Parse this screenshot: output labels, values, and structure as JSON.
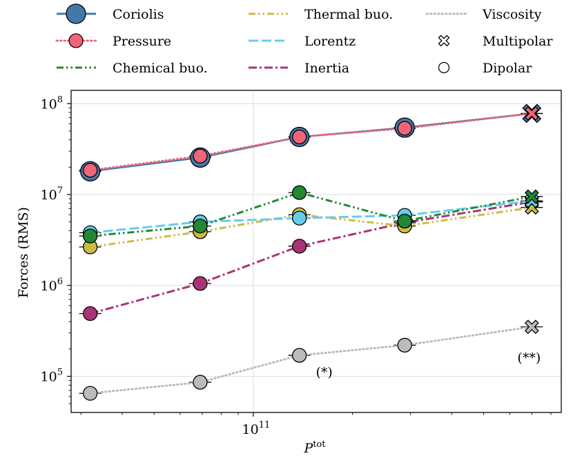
{
  "chart_data": {
    "type": "line",
    "xlabel": "P",
    "xlabel_sup": "tot",
    "ylabel": "Forces (RMS)",
    "xscale": "log",
    "yscale": "log",
    "xlim": [
      28000000000.0,
      860000000000.0
    ],
    "ylim": [
      40000,
      140000000
    ],
    "grid": true,
    "legend_position": "top, outside, 3 columns",
    "x_ticks": [
      {
        "value": 100000000000.0,
        "base": "10",
        "exp": "11"
      }
    ],
    "y_ticks": [
      {
        "value": 100000,
        "base": "10",
        "exp": "5"
      },
      {
        "value": 1000000,
        "base": "10",
        "exp": "6"
      },
      {
        "value": 10000000,
        "base": "10",
        "exp": "7"
      },
      {
        "value": 100000000,
        "base": "10",
        "exp": "8"
      }
    ],
    "x": [
      32000000000.0,
      69000000000.0,
      138000000000.0,
      288000000000.0,
      700000000000.0
    ],
    "series": [
      {
        "name": "Coriolis",
        "color": "#4477aa",
        "dash": "solid",
        "values": [
          18000000,
          25500000,
          43000000,
          54500000,
          78000000
        ]
      },
      {
        "name": "Pressure",
        "color": "#ee6677",
        "dash": "dot",
        "values": [
          18500000,
          26500000,
          43000000,
          53500000,
          78000000
        ]
      },
      {
        "name": "Chemical buo.",
        "color": "#228833",
        "dash": "dashdotdot",
        "values": [
          3500000,
          4500000,
          10500000,
          5100000,
          9500000
        ]
      },
      {
        "name": "Thermal buo.",
        "color": "#ccbb44",
        "dash": "dashdotdot",
        "values": [
          2650000,
          3900000,
          6000000,
          4500000,
          7200000
        ]
      },
      {
        "name": "Lorentz",
        "color": "#66ccee",
        "dash": "dash",
        "values": [
          3800000,
          5000000,
          5500000,
          5900000,
          8500000
        ]
      },
      {
        "name": "Inertia",
        "color": "#aa3377",
        "dash": "dashdot",
        "values": [
          490000,
          1050000,
          2700000,
          4900000,
          8300000
        ]
      },
      {
        "name": "Viscosity",
        "color": "#bbbbbb",
        "dash": "dot",
        "values": [
          65000,
          86000,
          170000,
          220000,
          350000
        ]
      }
    ],
    "marker_types": [
      "dipolar",
      "dipolar",
      "dipolar",
      "dipolar",
      "multipolar"
    ],
    "marker_legend": [
      {
        "label": "Multipolar",
        "symbol": "x-marker"
      },
      {
        "label": "Dipolar",
        "symbol": "circle-marker"
      }
    ],
    "annotations": [
      {
        "text": "(*)",
        "x": 138000000000.0,
        "y": 170000
      },
      {
        "text": "(**)",
        "x": 700000000000.0,
        "y": 350000
      }
    ]
  }
}
